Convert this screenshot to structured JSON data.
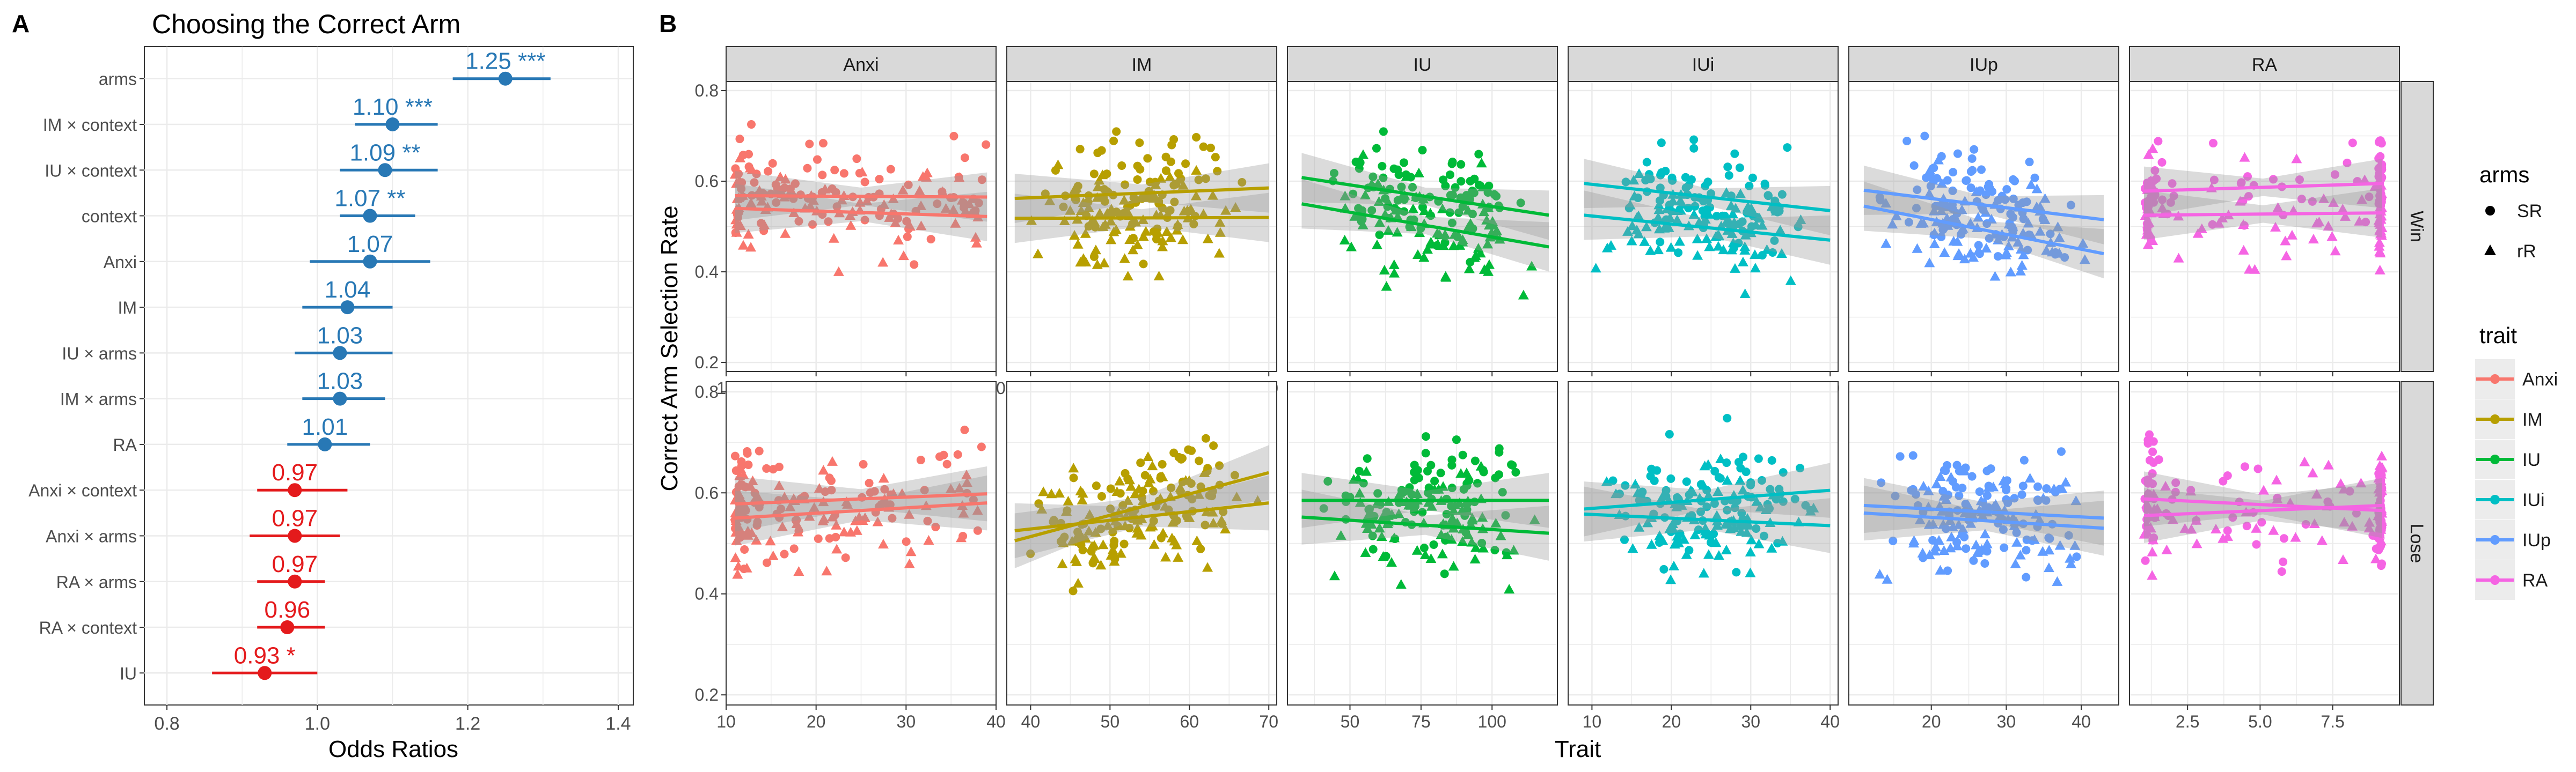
{
  "panel_labels": {
    "a": "A",
    "b": "B"
  },
  "colors": {
    "pos": "#2878b5",
    "neg": "#e41a1c",
    "Anxi": "#f8766d",
    "IM": "#b79f00",
    "IU": "#00ba38",
    "IUi": "#00bfc4",
    "IUp": "#619cff",
    "RA": "#f564e3",
    "strip_bg": "#d9d9d9",
    "grid": "#ebebeb",
    "ribbon": "#999999"
  },
  "chart_data": [
    {
      "type": "forest",
      "title": "Choosing the Correct Arm",
      "xlabel": "Odds Ratios",
      "xlim": [
        0.77,
        1.42
      ],
      "xticks": [
        0.8,
        1.0,
        1.2,
        1.4
      ],
      "xtick_labels": [
        "0.8",
        "1.0",
        "1.2",
        "1.4"
      ],
      "rows": [
        {
          "term": "arms",
          "or": 1.25,
          "lo": 1.18,
          "hi": 1.31,
          "label": "1.25 ***",
          "sign": "pos"
        },
        {
          "term": "IM × context",
          "or": 1.1,
          "lo": 1.05,
          "hi": 1.16,
          "label": "1.10 ***",
          "sign": "pos"
        },
        {
          "term": "IU × context",
          "or": 1.09,
          "lo": 1.03,
          "hi": 1.16,
          "label": "1.09 **",
          "sign": "pos"
        },
        {
          "term": "context",
          "or": 1.07,
          "lo": 1.03,
          "hi": 1.13,
          "label": "1.07 **",
          "sign": "pos"
        },
        {
          "term": "Anxi",
          "or": 1.07,
          "lo": 0.99,
          "hi": 1.15,
          "label": "1.07",
          "sign": "pos"
        },
        {
          "term": "IM",
          "or": 1.04,
          "lo": 0.98,
          "hi": 1.1,
          "label": "1.04",
          "sign": "pos"
        },
        {
          "term": "IU × arms",
          "or": 1.03,
          "lo": 0.97,
          "hi": 1.1,
          "label": "1.03",
          "sign": "pos"
        },
        {
          "term": "IM × arms",
          "or": 1.03,
          "lo": 0.98,
          "hi": 1.09,
          "label": "1.03",
          "sign": "pos"
        },
        {
          "term": "RA",
          "or": 1.01,
          "lo": 0.96,
          "hi": 1.07,
          "label": "1.01",
          "sign": "pos"
        },
        {
          "term": "Anxi × context",
          "or": 0.97,
          "lo": 0.92,
          "hi": 1.04,
          "label": "0.97",
          "sign": "neg"
        },
        {
          "term": "Anxi × arms",
          "or": 0.97,
          "lo": 0.91,
          "hi": 1.03,
          "label": "0.97",
          "sign": "neg"
        },
        {
          "term": "RA × arms",
          "or": 0.97,
          "lo": 0.92,
          "hi": 1.01,
          "label": "0.97",
          "sign": "neg"
        },
        {
          "term": "RA × context",
          "or": 0.96,
          "lo": 0.92,
          "hi": 1.01,
          "label": "0.96",
          "sign": "neg"
        },
        {
          "term": "IU",
          "or": 0.93,
          "lo": 0.86,
          "hi": 1.0,
          "label": "0.93 *",
          "sign": "neg"
        }
      ]
    },
    {
      "type": "scatter",
      "facet_by": [
        "trait",
        "context"
      ],
      "xlabel": "Trait",
      "ylabel": "Correct Arm Selection Rate",
      "ylim": [
        0.18,
        0.82
      ],
      "yticks": [
        0.2,
        0.4,
        0.6,
        0.8
      ],
      "ytick_labels": [
        "0.2",
        "0.4",
        "0.6",
        "0.8"
      ],
      "rows": [
        "Win",
        "Lose"
      ],
      "legend": {
        "arms_title": "arms",
        "arms": [
          {
            "name": "SR",
            "shape": "circle"
          },
          {
            "name": "rR",
            "shape": "triangle"
          }
        ],
        "trait_title": "trait",
        "traits": [
          "Anxi",
          "IM",
          "IU",
          "IUi",
          "IUp",
          "RA"
        ]
      },
      "panels": [
        {
          "trait": "Anxi",
          "xlim": [
            10,
            40
          ],
          "xticks": [
            10,
            20,
            30,
            40
          ],
          "xtick_labels": [
            "10",
            "20",
            "30",
            "40"
          ],
          "xrange": [
            11,
            39
          ],
          "seed": 11,
          "fits": {
            "Win": {
              "SR": [
                0.568,
                0.565
              ],
              "rR": [
                0.54,
                0.522
              ]
            },
            "Lose": {
              "SR": [
                0.578,
                0.598
              ],
              "rR": [
                0.55,
                0.58
              ]
            }
          }
        },
        {
          "trait": "IM",
          "xlim": [
            37,
            71
          ],
          "xticks": [
            40,
            50,
            60,
            70
          ],
          "xtick_labels": [
            "40",
            "50",
            "60",
            "70"
          ],
          "xrange": [
            38,
            70
          ],
          "seed": 23,
          "fits": {
            "Win": {
              "SR": [
                0.562,
                0.585
              ],
              "rR": [
                0.518,
                0.52
              ]
            },
            "Lose": {
              "SR": [
                0.505,
                0.64
              ],
              "rR": [
                0.525,
                0.58
              ]
            }
          }
        },
        {
          "trait": "IU",
          "xlim": [
            28,
            123
          ],
          "xticks": [
            50,
            75,
            100
          ],
          "xtick_labels": [
            "50",
            "75",
            "100"
          ],
          "xrange": [
            33,
            120
          ],
          "seed": 37,
          "fits": {
            "Win": {
              "SR": [
                0.608,
                0.525
              ],
              "rR": [
                0.55,
                0.455
              ]
            },
            "Lose": {
              "SR": [
                0.585,
                0.585
              ],
              "rR": [
                0.552,
                0.52
              ]
            }
          }
        },
        {
          "trait": "IUi",
          "xlim": [
            7,
            41
          ],
          "xticks": [
            10,
            20,
            30,
            40
          ],
          "xtick_labels": [
            "10",
            "20",
            "30",
            "40"
          ],
          "xrange": [
            9,
            40
          ],
          "seed": 41,
          "fits": {
            "Win": {
              "SR": [
                0.595,
                0.535
              ],
              "rR": [
                0.525,
                0.47
              ]
            },
            "Lose": {
              "SR": [
                0.568,
                0.605
              ],
              "rR": [
                0.558,
                0.535
              ]
            }
          }
        },
        {
          "trait": "IUp",
          "xlim": [
            9,
            45
          ],
          "xticks": [
            20,
            30,
            40
          ],
          "xtick_labels": [
            "20",
            "30",
            "40"
          ],
          "xrange": [
            11,
            43
          ],
          "seed": 53,
          "fits": {
            "Win": {
              "SR": [
                0.58,
                0.515
              ],
              "rR": [
                0.545,
                0.44
              ]
            },
            "Lose": {
              "SR": [
                0.575,
                0.55
              ],
              "rR": [
                0.56,
                0.53
              ]
            }
          }
        },
        {
          "trait": "RA",
          "xlim": [
            0.5,
            9.8
          ],
          "xticks": [
            2.5,
            5.0,
            7.5
          ],
          "xtick_labels": [
            "2.5",
            "5.0",
            "7.5"
          ],
          "xrange": [
            1,
            9.2
          ],
          "seed": 67,
          "fits": {
            "Win": {
              "SR": [
                0.578,
                0.595
              ],
              "rR": [
                0.525,
                0.53
              ]
            },
            "Lose": {
              "SR": [
                0.588,
                0.565
              ],
              "rR": [
                0.555,
                0.575
              ]
            }
          }
        }
      ]
    }
  ]
}
